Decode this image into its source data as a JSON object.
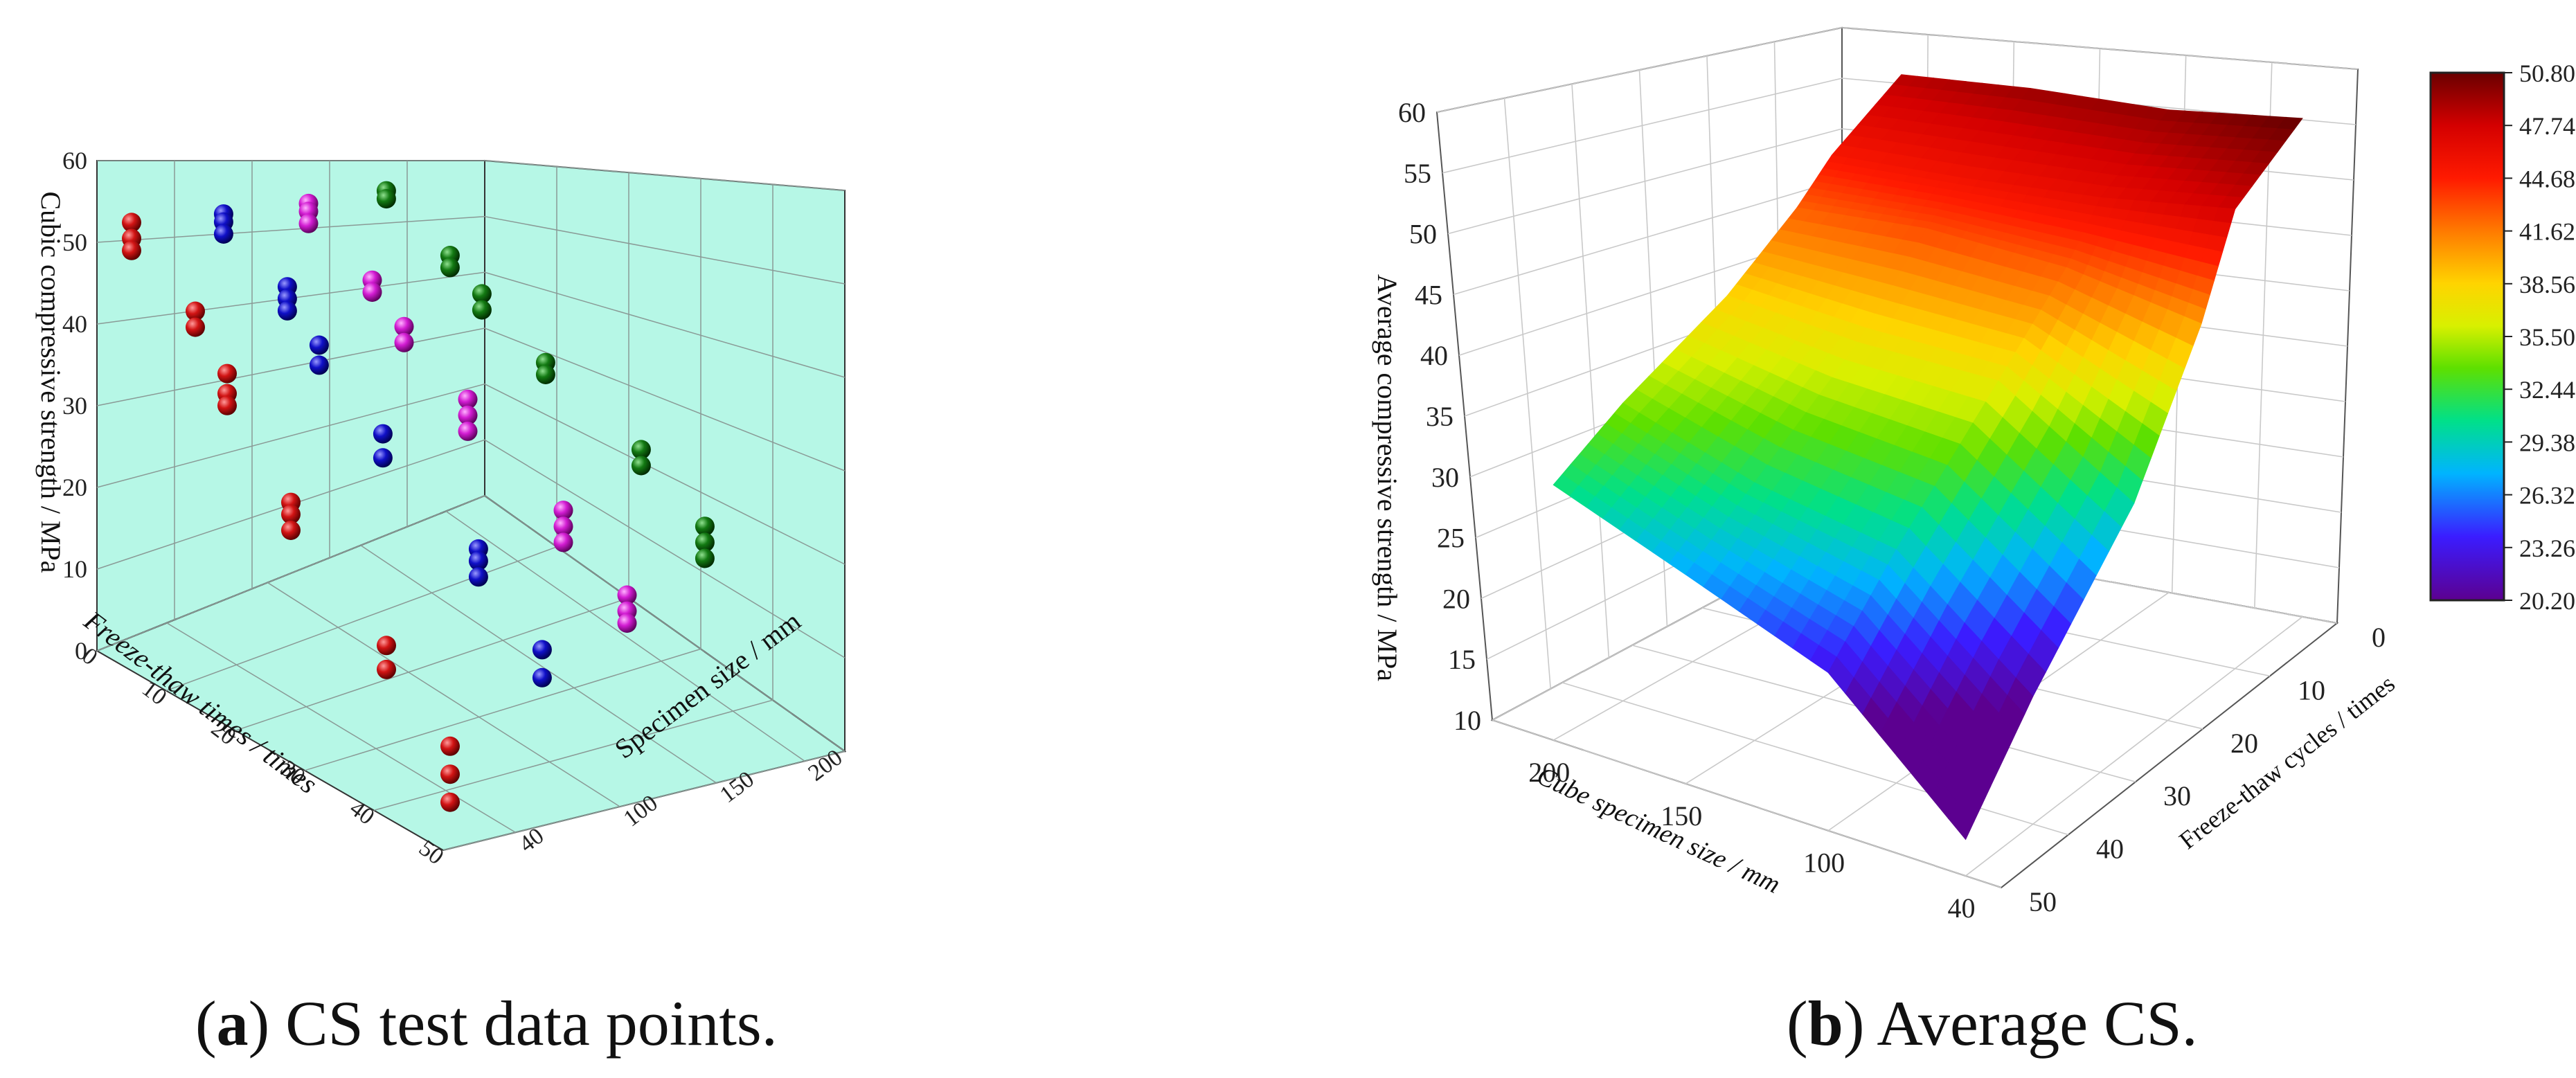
{
  "captions": {
    "a": {
      "letter": "a",
      "text": "CS test data points."
    },
    "b": {
      "letter": "b",
      "text": "Average CS."
    }
  },
  "colors": {
    "pane": "#b6f7e6",
    "series": [
      "#d11414",
      "#1010c8",
      "#d21cd2",
      "#137a13"
    ]
  },
  "chart_data": [
    {
      "type": "scatter",
      "title": "",
      "xlabel": "Freeze-thaw times / times",
      "ylabel": "Specimen size / mm",
      "zlabel": "Cubic compressive strength / MPa",
      "x_ticks": [
        "0",
        "10",
        "20",
        "30",
        "40",
        "50"
      ],
      "y_ticks": [
        "40",
        "100",
        "150",
        "200"
      ],
      "z_ticks": [
        "0",
        "10",
        "20",
        "30",
        "40",
        "50",
        "60"
      ],
      "xlim": [
        0,
        50
      ],
      "ylim_ticks_index": [
        0,
        3
      ],
      "zlim": [
        0,
        60
      ],
      "grid": true,
      "series": [
        {
          "size_mm": 40,
          "points": [
            [
              0,
              53.5
            ],
            [
              0,
              51.5
            ],
            [
              0,
              50.0
            ],
            [
              10,
              47.0
            ],
            [
              10,
              45.0
            ],
            [
              15,
              41.5
            ],
            [
              15,
              39.0
            ],
            [
              15,
              37.5
            ],
            [
              25,
              30.0
            ],
            [
              25,
              28.5
            ],
            [
              25,
              26.5
            ],
            [
              40,
              19.0
            ],
            [
              40,
              16.0
            ],
            [
              50,
              11.0
            ],
            [
              50,
              7.5
            ],
            [
              50,
              4.0
            ]
          ]
        },
        {
          "size_mm": 100,
          "points": [
            [
              0,
              51.5
            ],
            [
              0,
              50.5
            ],
            [
              0,
              49.0
            ],
            [
              10,
              47.0
            ],
            [
              10,
              45.5
            ],
            [
              10,
              44.0
            ],
            [
              15,
              42.0
            ],
            [
              15,
              39.5
            ],
            [
              25,
              35.5
            ],
            [
              25,
              32.5
            ],
            [
              40,
              28.0
            ],
            [
              40,
              26.5
            ],
            [
              40,
              24.5
            ],
            [
              50,
              20.0
            ],
            [
              50,
              16.5
            ]
          ]
        },
        {
          "size_mm": 150,
          "points": [
            [
              0,
              50.0
            ],
            [
              0,
              49.0
            ],
            [
              0,
              47.5
            ],
            [
              10,
              45.0
            ],
            [
              10,
              43.5
            ],
            [
              15,
              41.5
            ],
            [
              15,
              39.5
            ],
            [
              25,
              37.0
            ],
            [
              25,
              35.0
            ],
            [
              25,
              33.0
            ],
            [
              40,
              30.0
            ],
            [
              40,
              28.0
            ],
            [
              40,
              26.0
            ],
            [
              50,
              24.0
            ],
            [
              50,
              22.0
            ],
            [
              50,
              20.5
            ]
          ]
        },
        {
          "size_mm": 200,
          "points": [
            [
              0,
              49.0
            ],
            [
              0,
              48.0
            ],
            [
              10,
              45.5
            ],
            [
              10,
              44.0
            ],
            [
              15,
              43.0
            ],
            [
              15,
              41.0
            ],
            [
              25,
              39.0
            ],
            [
              25,
              37.5
            ],
            [
              40,
              35.0
            ],
            [
              40,
              33.0
            ],
            [
              50,
              30.0
            ],
            [
              50,
              28.0
            ],
            [
              50,
              26.0
            ]
          ]
        }
      ]
    },
    {
      "type": "surface",
      "title": "",
      "xlabel": "Cube specimen size / mm",
      "ylabel": "Freeze-thaw cycles / times",
      "zlabel": "Average compressive strength / MPa",
      "x_ticks": [
        "200",
        "150",
        "100",
        "40"
      ],
      "y_ticks": [
        "0",
        "10",
        "20",
        "30",
        "40",
        "50"
      ],
      "z_ticks": [
        "10",
        "15",
        "20",
        "25",
        "30",
        "35",
        "40",
        "45",
        "50",
        "55",
        "60"
      ],
      "zlim": [
        10,
        60
      ],
      "grid": true,
      "sizes_mm": [
        200,
        150,
        100,
        40
      ],
      "cycles": [
        0,
        10,
        15,
        25,
        40,
        50
      ],
      "z": [
        [
          48.6,
          45.2,
          42.5,
          38.5,
          34.5,
          31.0
        ],
        [
          49.4,
          45.6,
          43.2,
          37.4,
          31.2,
          27.2
        ],
        [
          49.7,
          46.4,
          42.6,
          37.2,
          29.2,
          23.0
        ],
        [
          51.0,
          47.8,
          40.5,
          30.0,
          20.5,
          13.0
        ]
      ],
      "colorbar": {
        "ticks": [
          "50.80",
          "47.74",
          "44.68",
          "41.62",
          "38.56",
          "35.50",
          "32.44",
          "29.38",
          "26.32",
          "23.26",
          "20.20"
        ],
        "range": [
          20.2,
          50.8
        ],
        "position": "right"
      }
    }
  ]
}
